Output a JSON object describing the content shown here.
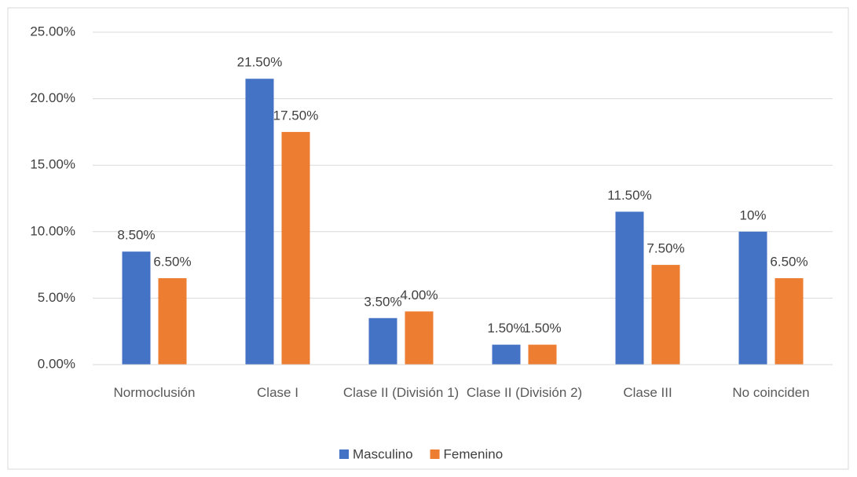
{
  "chart_data": {
    "type": "bar",
    "categories": [
      "Normoclusión",
      "Clase I",
      "Clase II (División 1)",
      "Clase II (División 2)",
      "Clase III",
      "No coinciden"
    ],
    "series": [
      {
        "name": "Masculino",
        "color": "#4472c4",
        "values": [
          8.5,
          21.5,
          3.5,
          1.5,
          11.5,
          10
        ],
        "value_labels": [
          "8.50%",
          "21.50%",
          "3.50%",
          "1.50%",
          "11.50%",
          "10%"
        ]
      },
      {
        "name": "Femenino",
        "color": "#ed7d31",
        "values": [
          6.5,
          17.5,
          4.0,
          1.5,
          7.5,
          6.5
        ],
        "value_labels": [
          "6.50%",
          "17.50%",
          "4.00%",
          "1.50%",
          "7.50%",
          "6.50%"
        ]
      }
    ],
    "ylim": [
      0,
      25
    ],
    "yticks": [
      {
        "value": 0,
        "label": "0.00%"
      },
      {
        "value": 5,
        "label": "5.00%"
      },
      {
        "value": 10,
        "label": "10.00%"
      },
      {
        "value": 15,
        "label": "15.00%"
      },
      {
        "value": 20,
        "label": "20.00%"
      },
      {
        "value": 25,
        "label": "25.00%"
      }
    ],
    "grid": true,
    "legend": "bottom"
  }
}
